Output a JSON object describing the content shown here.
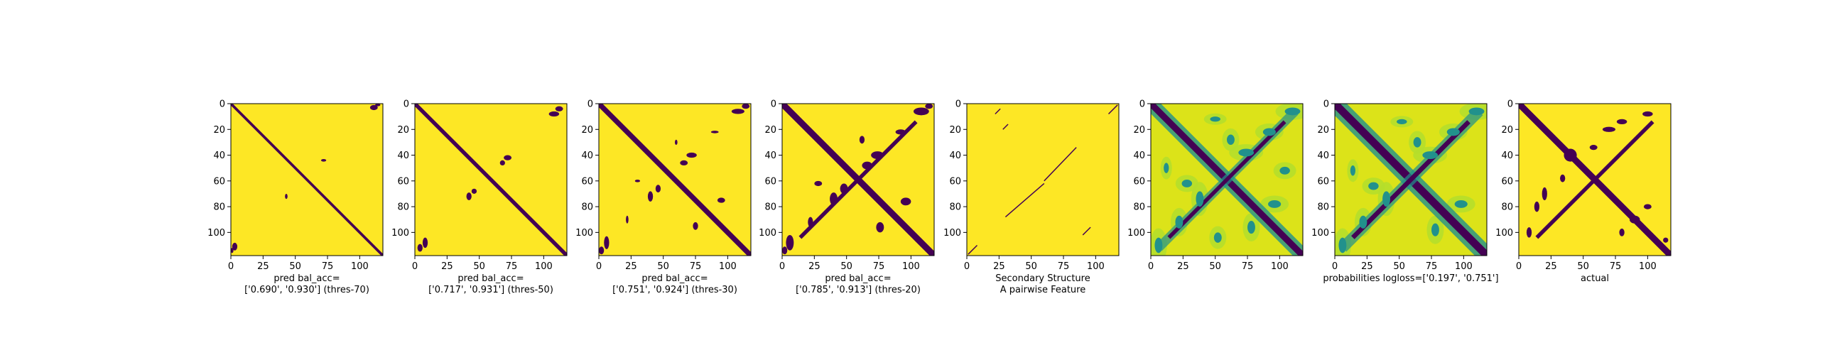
{
  "chart_data": [
    {
      "type": "heatmap",
      "title": "",
      "caption": [
        "pred bal_acc=",
        "['0.690', '0.930'] (thres-70)"
      ],
      "xlabel": "",
      "ylabel": "",
      "xlim": [
        0,
        118
      ],
      "ylim": [
        118,
        0
      ],
      "xticks": [
        0,
        25,
        50,
        75,
        100
      ],
      "yticks": [
        0,
        20,
        40,
        60,
        80,
        100
      ],
      "colormap": "binary-viridis",
      "colors": {
        "background": "#fde725",
        "marks": "#440154"
      },
      "diagonal_band_width": 2,
      "anti_diagonal": false,
      "blobs": [
        {
          "x": 111,
          "y": 3,
          "rx": 3,
          "ry": 2
        },
        {
          "x": 114,
          "y": 1,
          "rx": 2,
          "ry": 1
        },
        {
          "x": 72,
          "y": 44,
          "rx": 2,
          "ry": 1
        },
        {
          "x": 43,
          "y": 72,
          "rx": 1,
          "ry": 2
        },
        {
          "x": 3,
          "y": 111,
          "rx": 2,
          "ry": 3
        },
        {
          "x": 1,
          "y": 114,
          "rx": 1,
          "ry": 2
        }
      ]
    },
    {
      "type": "heatmap",
      "title": "",
      "caption": [
        "pred bal_acc=",
        "['0.717', '0.931'] (thres-50)"
      ],
      "xlabel": "",
      "ylabel": "",
      "xlim": [
        0,
        118
      ],
      "ylim": [
        118,
        0
      ],
      "xticks": [
        0,
        25,
        50,
        75,
        100
      ],
      "yticks": [
        0,
        20,
        40,
        60,
        80,
        100
      ],
      "colormap": "binary-viridis",
      "colors": {
        "background": "#fde725",
        "marks": "#440154"
      },
      "diagonal_band_width": 3,
      "anti_diagonal": false,
      "blobs": [
        {
          "x": 108,
          "y": 8,
          "rx": 4,
          "ry": 2
        },
        {
          "x": 112,
          "y": 4,
          "rx": 3,
          "ry": 2
        },
        {
          "x": 72,
          "y": 42,
          "rx": 3,
          "ry": 2
        },
        {
          "x": 68,
          "y": 46,
          "rx": 2,
          "ry": 2
        },
        {
          "x": 42,
          "y": 72,
          "rx": 2,
          "ry": 3
        },
        {
          "x": 46,
          "y": 68,
          "rx": 2,
          "ry": 2
        },
        {
          "x": 8,
          "y": 108,
          "rx": 2,
          "ry": 4
        },
        {
          "x": 4,
          "y": 112,
          "rx": 2,
          "ry": 3
        }
      ]
    },
    {
      "type": "heatmap",
      "title": "",
      "caption": [
        "pred bal_acc=",
        "['0.751', '0.924'] (thres-30)"
      ],
      "xlabel": "",
      "ylabel": "",
      "xlim": [
        0,
        118
      ],
      "ylim": [
        118,
        0
      ],
      "xticks": [
        0,
        25,
        50,
        75,
        100
      ],
      "yticks": [
        0,
        20,
        40,
        60,
        80,
        100
      ],
      "colormap": "binary-viridis",
      "colors": {
        "background": "#fde725",
        "marks": "#440154"
      },
      "diagonal_band_width": 4,
      "anti_diagonal": false,
      "blobs": [
        {
          "x": 108,
          "y": 6,
          "rx": 5,
          "ry": 2
        },
        {
          "x": 114,
          "y": 2,
          "rx": 3,
          "ry": 2
        },
        {
          "x": 72,
          "y": 40,
          "rx": 4,
          "ry": 2
        },
        {
          "x": 66,
          "y": 46,
          "rx": 3,
          "ry": 2
        },
        {
          "x": 90,
          "y": 22,
          "rx": 3,
          "ry": 1
        },
        {
          "x": 40,
          "y": 72,
          "rx": 2,
          "ry": 4
        },
        {
          "x": 46,
          "y": 66,
          "rx": 2,
          "ry": 3
        },
        {
          "x": 22,
          "y": 90,
          "rx": 1,
          "ry": 3
        },
        {
          "x": 30,
          "y": 60,
          "rx": 2,
          "ry": 1
        },
        {
          "x": 60,
          "y": 30,
          "rx": 1,
          "ry": 2
        },
        {
          "x": 95,
          "y": 75,
          "rx": 3,
          "ry": 2
        },
        {
          "x": 75,
          "y": 95,
          "rx": 2,
          "ry": 3
        },
        {
          "x": 6,
          "y": 108,
          "rx": 2,
          "ry": 5
        },
        {
          "x": 2,
          "y": 114,
          "rx": 2,
          "ry": 3
        }
      ]
    },
    {
      "type": "heatmap",
      "title": "",
      "caption": [
        "pred bal_acc=",
        "['0.785', '0.913'] (thres-20)"
      ],
      "xlabel": "",
      "ylabel": "",
      "xlim": [
        0,
        118
      ],
      "ylim": [
        118,
        0
      ],
      "xticks": [
        0,
        25,
        50,
        75,
        100
      ],
      "yticks": [
        0,
        20,
        40,
        60,
        80,
        100
      ],
      "colormap": "binary-viridis",
      "colors": {
        "background": "#fde725",
        "marks": "#440154"
      },
      "diagonal_band_width": 5,
      "anti_diagonal": true,
      "blobs": [
        {
          "x": 108,
          "y": 6,
          "rx": 6,
          "ry": 3
        },
        {
          "x": 114,
          "y": 2,
          "rx": 3,
          "ry": 2
        },
        {
          "x": 74,
          "y": 40,
          "rx": 5,
          "ry": 3
        },
        {
          "x": 66,
          "y": 48,
          "rx": 4,
          "ry": 3
        },
        {
          "x": 92,
          "y": 22,
          "rx": 4,
          "ry": 2
        },
        {
          "x": 40,
          "y": 74,
          "rx": 3,
          "ry": 5
        },
        {
          "x": 48,
          "y": 66,
          "rx": 3,
          "ry": 4
        },
        {
          "x": 22,
          "y": 92,
          "rx": 2,
          "ry": 4
        },
        {
          "x": 28,
          "y": 62,
          "rx": 3,
          "ry": 2
        },
        {
          "x": 62,
          "y": 28,
          "rx": 2,
          "ry": 3
        },
        {
          "x": 96,
          "y": 76,
          "rx": 4,
          "ry": 3
        },
        {
          "x": 76,
          "y": 96,
          "rx": 3,
          "ry": 4
        },
        {
          "x": 6,
          "y": 108,
          "rx": 3,
          "ry": 6
        },
        {
          "x": 2,
          "y": 114,
          "rx": 2,
          "ry": 3
        }
      ]
    },
    {
      "type": "heatmap",
      "title": "",
      "caption": [
        "Secondary Structure",
        "A pairwise Feature"
      ],
      "xlabel": "",
      "ylabel": "",
      "xlim": [
        0,
        118
      ],
      "ylim": [
        118,
        0
      ],
      "xticks": [
        0,
        25,
        50,
        75,
        100
      ],
      "yticks": [
        0,
        20,
        40,
        60,
        80,
        100
      ],
      "colormap": "binary-viridis",
      "colors": {
        "background": "#fde725",
        "marks": "#440154"
      },
      "diagonal_band_width": 0,
      "anti_diagonal": false,
      "segments": [
        {
          "x1": 110,
          "y1": 8,
          "x2": 117,
          "y2": 1
        },
        {
          "x1": 8,
          "y1": 110,
          "x2": 1,
          "y2": 117
        },
        {
          "x1": 26,
          "y1": 4,
          "x2": 22,
          "y2": 8
        },
        {
          "x1": 32,
          "y1": 16,
          "x2": 28,
          "y2": 20
        },
        {
          "x1": 85,
          "y1": 34,
          "x2": 60,
          "y2": 60
        },
        {
          "x1": 60,
          "y1": 62,
          "x2": 30,
          "y2": 88
        },
        {
          "x1": 96,
          "y1": 96,
          "x2": 90,
          "y2": 102
        }
      ]
    },
    {
      "type": "heatmap",
      "title": "",
      "caption": [
        ""
      ],
      "xlabel": "",
      "ylabel": "",
      "xlim": [
        0,
        118
      ],
      "ylim": [
        118,
        0
      ],
      "xticks": [
        0,
        25,
        50,
        75,
        100
      ],
      "yticks": [
        0,
        20,
        40,
        60,
        80,
        100
      ],
      "colormap": "viridis-continuous",
      "colors": {
        "background": "#dce319",
        "marks": "#440154",
        "mid": "#21918c",
        "light": "#b5de2b"
      },
      "diagonal_band_width": 5,
      "anti_diagonal": true,
      "blobs": [
        {
          "x": 74,
          "y": 38,
          "rx": 6,
          "ry": 3
        },
        {
          "x": 92,
          "y": 22,
          "rx": 5,
          "ry": 3
        },
        {
          "x": 62,
          "y": 28,
          "rx": 3,
          "ry": 4
        },
        {
          "x": 38,
          "y": 74,
          "rx": 3,
          "ry": 6
        },
        {
          "x": 22,
          "y": 92,
          "rx": 3,
          "ry": 5
        },
        {
          "x": 28,
          "y": 62,
          "rx": 4,
          "ry": 3
        },
        {
          "x": 96,
          "y": 78,
          "rx": 5,
          "ry": 3
        },
        {
          "x": 78,
          "y": 96,
          "rx": 3,
          "ry": 5
        },
        {
          "x": 110,
          "y": 6,
          "rx": 6,
          "ry": 3
        },
        {
          "x": 6,
          "y": 110,
          "rx": 3,
          "ry": 6
        },
        {
          "x": 50,
          "y": 12,
          "rx": 4,
          "ry": 2
        },
        {
          "x": 12,
          "y": 50,
          "rx": 2,
          "ry": 4
        },
        {
          "x": 104,
          "y": 52,
          "rx": 4,
          "ry": 3
        },
        {
          "x": 52,
          "y": 104,
          "rx": 3,
          "ry": 4
        }
      ]
    },
    {
      "type": "heatmap",
      "title": "",
      "caption": [
        "probabilities logloss=['0.197', '0.751']"
      ],
      "xlabel": "",
      "ylabel": "",
      "xlim": [
        0,
        118
      ],
      "ylim": [
        118,
        0
      ],
      "xticks": [
        0,
        25,
        50,
        75,
        100
      ],
      "yticks": [
        0,
        20,
        40,
        60,
        80,
        100
      ],
      "colormap": "viridis-continuous",
      "colors": {
        "background": "#dce319",
        "marks": "#440154",
        "mid": "#21918c",
        "light": "#b5de2b"
      },
      "diagonal_band_width": 6,
      "anti_diagonal": true,
      "blobs": [
        {
          "x": 74,
          "y": 40,
          "rx": 6,
          "ry": 3
        },
        {
          "x": 92,
          "y": 22,
          "rx": 5,
          "ry": 3
        },
        {
          "x": 64,
          "y": 30,
          "rx": 3,
          "ry": 4
        },
        {
          "x": 40,
          "y": 74,
          "rx": 3,
          "ry": 6
        },
        {
          "x": 22,
          "y": 92,
          "rx": 3,
          "ry": 5
        },
        {
          "x": 30,
          "y": 64,
          "rx": 4,
          "ry": 3
        },
        {
          "x": 98,
          "y": 78,
          "rx": 5,
          "ry": 3
        },
        {
          "x": 78,
          "y": 98,
          "rx": 3,
          "ry": 5
        },
        {
          "x": 110,
          "y": 6,
          "rx": 6,
          "ry": 3
        },
        {
          "x": 6,
          "y": 110,
          "rx": 3,
          "ry": 6
        },
        {
          "x": 52,
          "y": 14,
          "rx": 4,
          "ry": 2
        },
        {
          "x": 14,
          "y": 52,
          "rx": 2,
          "ry": 4
        }
      ]
    },
    {
      "type": "heatmap",
      "title": "",
      "caption": [
        "actual"
      ],
      "xlabel": "",
      "ylabel": "",
      "xlim": [
        0,
        118
      ],
      "ylim": [
        118,
        0
      ],
      "xticks": [
        0,
        25,
        50,
        75,
        100
      ],
      "yticks": [
        0,
        20,
        40,
        60,
        80,
        100
      ],
      "colormap": "binary-viridis",
      "colors": {
        "background": "#fde725",
        "marks": "#440154"
      },
      "diagonal_band_width": 5,
      "anti_diagonal": true,
      "blobs": [
        {
          "x": 70,
          "y": 20,
          "rx": 5,
          "ry": 2
        },
        {
          "x": 80,
          "y": 14,
          "rx": 4,
          "ry": 2
        },
        {
          "x": 100,
          "y": 8,
          "rx": 4,
          "ry": 2
        },
        {
          "x": 20,
          "y": 70,
          "rx": 2,
          "ry": 5
        },
        {
          "x": 14,
          "y": 80,
          "rx": 2,
          "ry": 4
        },
        {
          "x": 8,
          "y": 100,
          "rx": 2,
          "ry": 4
        },
        {
          "x": 40,
          "y": 40,
          "rx": 5,
          "ry": 5
        },
        {
          "x": 90,
          "y": 90,
          "rx": 4,
          "ry": 3
        },
        {
          "x": 100,
          "y": 80,
          "rx": 3,
          "ry": 2
        },
        {
          "x": 80,
          "y": 100,
          "rx": 2,
          "ry": 3
        },
        {
          "x": 58,
          "y": 34,
          "rx": 3,
          "ry": 2
        },
        {
          "x": 34,
          "y": 58,
          "rx": 2,
          "ry": 3
        },
        {
          "x": 110,
          "y": 110,
          "rx": 2,
          "ry": 2
        },
        {
          "x": 114,
          "y": 106,
          "rx": 2,
          "ry": 2
        }
      ]
    }
  ]
}
